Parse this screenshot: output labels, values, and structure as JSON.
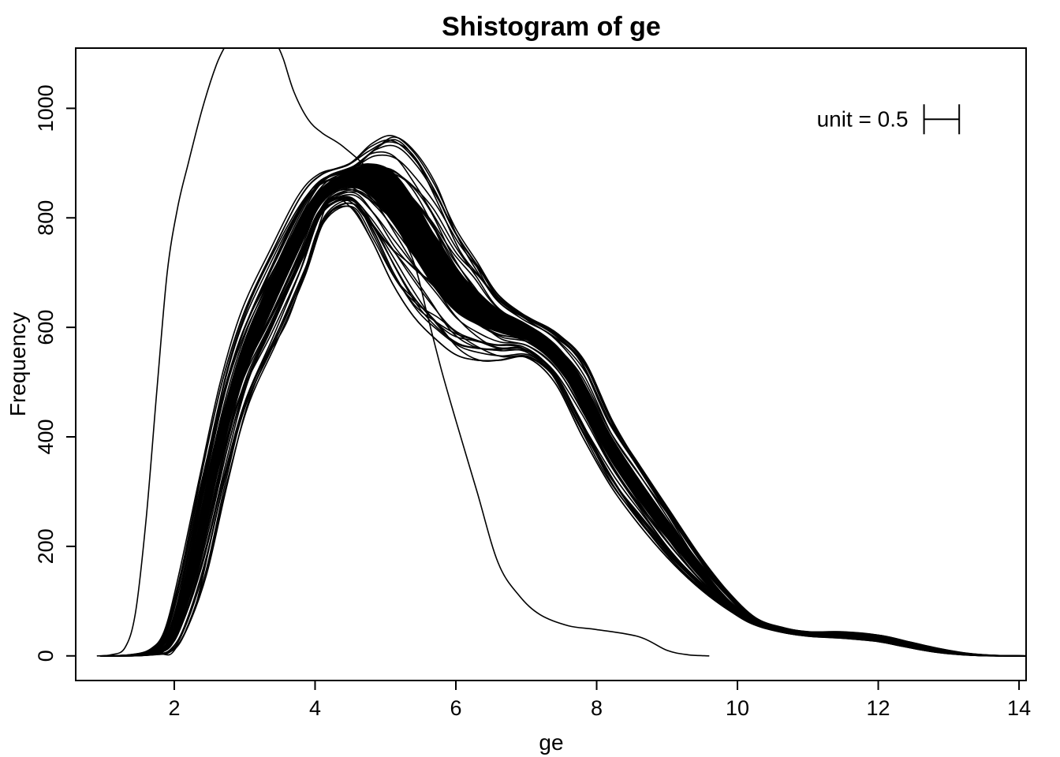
{
  "chart_data": {
    "type": "line",
    "title": "Shistogram of ge",
    "xlabel": "ge",
    "ylabel": "Frequency",
    "xlim": [
      0.6,
      14.1
    ],
    "ylim": [
      -45,
      1110
    ],
    "xticks": [
      2,
      4,
      6,
      8,
      10,
      12,
      14
    ],
    "yticks": [
      0,
      200,
      400,
      600,
      800,
      1000
    ],
    "grid": false,
    "legend": "none",
    "annotation": {
      "text": "unit = 0.5",
      "bar_width": 0.5,
      "x": 13.15,
      "y": 980
    },
    "colors": {
      "line": "#000000",
      "background": "#ffffff"
    },
    "series": [
      {
        "role": "outlier-left",
        "x": [
          0.9,
          1.1,
          1.3,
          1.45,
          1.6,
          1.75,
          1.9,
          2.05,
          2.2,
          2.4,
          2.6,
          2.75
        ],
        "y": [
          0,
          2,
          15,
          80,
          250,
          480,
          700,
          820,
          900,
          1000,
          1080,
          1120
        ]
      },
      {
        "role": "outlier-right",
        "x": [
          3.45,
          3.55,
          3.7,
          3.9,
          4.1,
          4.4,
          4.8,
          5.1,
          5.4,
          5.6,
          5.8,
          6.0,
          6.3,
          6.6,
          6.9,
          7.2,
          7.6,
          8.0,
          8.6,
          9.0,
          9.3,
          9.6
        ],
        "y": [
          1120,
          1090,
          1030,
          980,
          955,
          930,
          880,
          800,
          720,
          620,
          520,
          430,
          300,
          170,
          110,
          75,
          55,
          48,
          35,
          10,
          2,
          0
        ]
      },
      {
        "role": "envelope-upper",
        "x": [
          1.0,
          1.4,
          1.7,
          1.9,
          2.1,
          2.4,
          2.7,
          3.0,
          3.4,
          3.8,
          4.1,
          4.5,
          4.8,
          5.1,
          5.4,
          5.7,
          6.0,
          6.3,
          6.6,
          7.0,
          7.4,
          7.8,
          8.2,
          8.6,
          9.0,
          9.4,
          9.8,
          10.2,
          10.6,
          11.0,
          11.5,
          12.0,
          12.4,
          12.8,
          13.2,
          13.6,
          14.1
        ],
        "y": [
          0,
          2,
          12,
          45,
          150,
          340,
          510,
          630,
          740,
          840,
          880,
          900,
          935,
          950,
          920,
          860,
          780,
          720,
          660,
          620,
          590,
          540,
          430,
          350,
          270,
          190,
          120,
          70,
          52,
          44,
          44,
          38,
          26,
          14,
          5,
          1,
          0
        ]
      },
      {
        "role": "envelope-lower",
        "x": [
          1.0,
          1.4,
          1.8,
          2.0,
          2.3,
          2.6,
          2.9,
          3.2,
          3.6,
          3.9,
          4.2,
          4.5,
          4.8,
          5.1,
          5.4,
          5.7,
          6.0,
          6.3,
          6.6,
          7.0,
          7.4,
          7.8,
          8.2,
          8.6,
          9.0,
          9.4,
          9.8,
          10.2,
          10.6,
          11.0,
          11.5,
          12.0,
          12.4,
          12.8,
          13.2,
          13.6,
          14.1
        ],
        "y": [
          0,
          0,
          3,
          10,
          90,
          260,
          420,
          520,
          610,
          720,
          830,
          820,
          760,
          680,
          620,
          580,
          550,
          540,
          540,
          545,
          500,
          400,
          310,
          240,
          180,
          130,
          90,
          60,
          44,
          36,
          32,
          26,
          16,
          7,
          2,
          0,
          0
        ]
      },
      {
        "role": "bundle-center",
        "x": [
          1.0,
          1.4,
          1.8,
          2.0,
          2.2,
          2.5,
          2.8,
          3.1,
          3.5,
          3.9,
          4.2,
          4.5,
          4.8,
          5.1,
          5.4,
          5.7,
          6.0,
          6.3,
          6.6,
          7.0,
          7.4,
          7.8,
          8.2,
          8.6,
          9.0,
          9.4,
          9.8,
          10.2,
          10.6,
          11.0,
          11.5,
          12.0,
          12.4,
          12.8,
          13.2,
          13.6,
          14.1
        ],
        "y": [
          0,
          0,
          6,
          25,
          100,
          300,
          470,
          590,
          700,
          810,
          860,
          880,
          880,
          850,
          790,
          720,
          670,
          640,
          620,
          600,
          560,
          480,
          390,
          310,
          240,
          170,
          110,
          64,
          47,
          40,
          38,
          32,
          21,
          10,
          3,
          0,
          0
        ]
      }
    ]
  }
}
